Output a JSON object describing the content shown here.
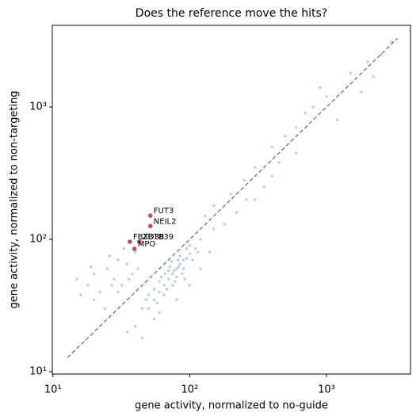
{
  "chart_data": {
    "type": "scatter",
    "title": "Does the reference move the hits?",
    "xlabel": "gene activity, normalized to no-guide",
    "ylabel": "gene activity, normalized to non-targeting",
    "xscale": "log",
    "yscale": "log",
    "xlim": [
      9.9,
      4110
    ],
    "ylim": [
      9.6,
      4140
    ],
    "xticks": [
      {
        "value": 10,
        "label": "10¹"
      },
      {
        "value": 100,
        "label": "10²"
      },
      {
        "value": 1000,
        "label": "10³"
      }
    ],
    "yticks": [
      {
        "value": 10,
        "label": "10¹"
      },
      {
        "value": 100,
        "label": "10²"
      },
      {
        "value": 1000,
        "label": "10³"
      }
    ],
    "points": {
      "color": "#3b7fad",
      "x": [
        50,
        55,
        60,
        65,
        70,
        75,
        80,
        85,
        90,
        95,
        100,
        60,
        70,
        80,
        65,
        75,
        90,
        55,
        85,
        100,
        110,
        58,
        62,
        72,
        78,
        88,
        95,
        68,
        74,
        82,
        50,
        45,
        48,
        105,
        120,
        115,
        92,
        66,
        77,
        83,
        15,
        18,
        20,
        22,
        25,
        28,
        30,
        32,
        35,
        38,
        20,
        24,
        26,
        30,
        40,
        42,
        16,
        33,
        45,
        50,
        36,
        27,
        19,
        150,
        200,
        250,
        300,
        400,
        500,
        600,
        800,
        1000,
        1500,
        2000,
        2500,
        3000,
        700,
        350,
        450,
        180,
        220,
        260,
        150,
        130,
        300,
        1200,
        900,
        1800,
        400,
        600,
        2200,
        40,
        35,
        55,
        45,
        80,
        100,
        120,
        140,
        60
      ],
      "y": [
        30,
        35,
        40,
        45,
        50,
        55,
        60,
        65,
        70,
        72,
        78,
        48,
        58,
        52,
        38,
        45,
        60,
        42,
        75,
        90,
        85,
        33,
        52,
        62,
        48,
        55,
        85,
        42,
        68,
        70,
        38,
        30,
        35,
        70,
        100,
        80,
        50,
        55,
        58,
        62,
        50,
        45,
        55,
        40,
        60,
        50,
        70,
        45,
        65,
        55,
        35,
        30,
        75,
        40,
        80,
        60,
        38,
        85,
        100,
        110,
        50,
        45,
        62,
        180,
        220,
        280,
        350,
        500,
        600,
        700,
        1000,
        1200,
        1800,
        2200,
        2500,
        3100,
        900,
        250,
        380,
        130,
        160,
        200,
        120,
        150,
        200,
        800,
        1400,
        1300,
        300,
        450,
        1700,
        22,
        20,
        25,
        18,
        35,
        45,
        60,
        80,
        28
      ]
    },
    "highlights": {
      "color": "#b5545c",
      "x": [
        51.6,
        51.6,
        36.5,
        42.8,
        39.5
      ],
      "y": [
        151,
        126,
        96,
        96,
        84.7
      ],
      "labels": [
        "FUT3",
        "NEIL2",
        "FBXO38",
        "ZBTB39",
        "MPO"
      ]
    },
    "identity_line": {
      "x": [
        12.8,
        3300
      ],
      "y": [
        12.8,
        3300
      ],
      "color": "#666666"
    }
  }
}
